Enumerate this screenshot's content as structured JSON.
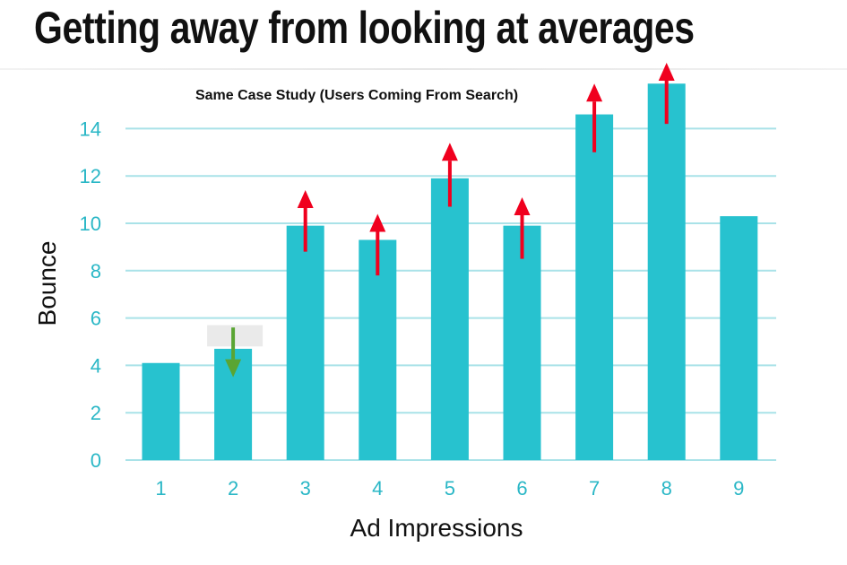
{
  "slide": {
    "title": "Getting away from looking at averages"
  },
  "colors": {
    "bar": "#27c2cf",
    "grid": "#a9e2e8",
    "tick": "#2ab7c6",
    "arrow_up": "#f0001e",
    "arrow_down": "#5aa533",
    "highlight": "#e8e8e8"
  },
  "chart_data": {
    "type": "bar",
    "title": "Same Case Study (Users Coming From Search)",
    "xlabel": "Ad Impressions",
    "ylabel": "Bounce",
    "categories": [
      "1",
      "2",
      "3",
      "4",
      "5",
      "6",
      "7",
      "8",
      "9"
    ],
    "values": [
      4.1,
      4.7,
      9.9,
      9.3,
      11.9,
      9.9,
      14.6,
      15.9,
      10.3
    ],
    "ylim": [
      0,
      16
    ],
    "yticks": [
      0,
      2,
      4,
      6,
      8,
      10,
      12,
      14
    ],
    "grid": true,
    "annotations": [
      {
        "category": "2",
        "direction": "down",
        "from": 5.6,
        "to": 3.5
      },
      {
        "category": "3",
        "direction": "up",
        "from": 8.8,
        "to": 11.4
      },
      {
        "category": "4",
        "direction": "up",
        "from": 7.8,
        "to": 10.4
      },
      {
        "category": "5",
        "direction": "up",
        "from": 10.7,
        "to": 13.4
      },
      {
        "category": "6",
        "direction": "up",
        "from": 8.5,
        "to": 11.1
      },
      {
        "category": "7",
        "direction": "up",
        "from": 13.0,
        "to": 15.9
      },
      {
        "category": "8",
        "direction": "up",
        "from": 14.2,
        "to": 17.0
      }
    ],
    "highlight_box": {
      "category": "2",
      "from": 4.8,
      "to": 5.7
    }
  }
}
